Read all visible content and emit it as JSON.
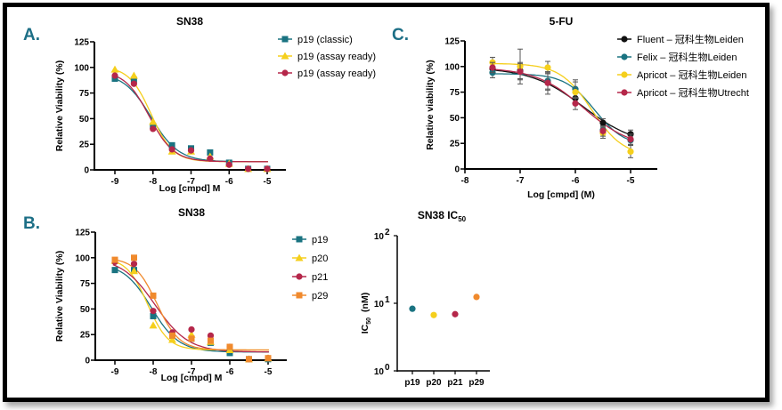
{
  "panels": {
    "A": "A.",
    "B": "B.",
    "C": "C."
  },
  "colors": {
    "teal": "#1a7381",
    "yellow": "#f5cf1c",
    "red": "#b5274a",
    "orange": "#f08a2d",
    "black": "#111111",
    "letter": "#1d6f86"
  },
  "chart_data": [
    {
      "id": "A",
      "type": "scatter",
      "title": "SN38",
      "xlabel": "Log [cmpd] M",
      "ylabel": "Relative Viability (%)",
      "xlim": [
        -9.5,
        -4.7
      ],
      "ylim": [
        0,
        125
      ],
      "xticks": [
        -9,
        -8,
        -7,
        -6,
        -5
      ],
      "yticks": [
        0,
        25,
        50,
        75,
        100,
        125
      ],
      "legend_position": "top-right",
      "x": [
        -9,
        -8.5,
        -8,
        -7.5,
        -7,
        -6.5,
        -6,
        -5.5,
        -5
      ],
      "series": [
        {
          "name": "p19 (classic)",
          "color": "#1a7381",
          "marker": "square",
          "values": [
            89,
            88,
            43,
            24,
            21,
            17,
            7,
            1,
            1
          ],
          "fit": {
            "top": 95,
            "bottom": 8,
            "logec50": -8.05,
            "hill": 1.2
          }
        },
        {
          "name": "p19 (assay ready)",
          "color": "#f5cf1c",
          "marker": "triangle",
          "values": [
            98,
            92,
            47,
            18,
            18,
            13,
            6,
            1,
            1
          ],
          "fit": {
            "top": 101,
            "bottom": 8,
            "logec50": -8.05,
            "hill": 1.5
          }
        },
        {
          "name": "p19 (assay ready)",
          "color": "#b5274a",
          "marker": "circle",
          "values": [
            92,
            84,
            40,
            20,
            19,
            11,
            5,
            1,
            1
          ],
          "fit": {
            "top": 97,
            "bottom": 8,
            "logec50": -8.1,
            "hill": 1.35
          }
        }
      ]
    },
    {
      "id": "C",
      "type": "scatter",
      "title": "5-FU",
      "xlabel": "Log [cmpd] (M)",
      "ylabel": "Relative viability (%)",
      "xlim": [
        -8,
        -4.5
      ],
      "ylim": [
        0,
        125
      ],
      "xticks": [
        -8,
        -7,
        -6,
        -5
      ],
      "yticks": [
        0,
        25,
        50,
        75,
        100,
        125
      ],
      "legend_position": "top-right",
      "x": [
        -7.5,
        -7,
        -6.5,
        -6,
        -5.5,
        -5
      ],
      "series": [
        {
          "name": "Fluent – 冠科生物Leiden",
          "color": "#111111",
          "marker": "circle",
          "values": [
            98,
            96,
            85,
            69,
            45,
            34
          ],
          "err": [
            5,
            8,
            8,
            6,
            4,
            4
          ],
          "fit": {
            "top": 99,
            "bottom": 22,
            "logec50": -5.85,
            "hill": 0.9
          }
        },
        {
          "name": "Felix – 冠科生物Leiden",
          "color": "#1a7381",
          "marker": "circle",
          "values": [
            94,
            95,
            86,
            78,
            38,
            28
          ],
          "err": [
            5,
            7,
            8,
            9,
            4,
            4
          ],
          "fit": {
            "top": 93,
            "bottom": 22,
            "logec50": -5.65,
            "hill": 1.6
          }
        },
        {
          "name": "Apricot – 冠科生物Leiden",
          "color": "#f5cf1c",
          "marker": "circle",
          "values": [
            104,
            100,
            99,
            75,
            35,
            17
          ],
          "err": [
            5,
            17,
            6,
            10,
            5,
            6
          ],
          "fit": {
            "top": 103,
            "bottom": 12,
            "logec50": -5.7,
            "hill": 1.5
          }
        },
        {
          "name": "Apricot – 冠科生物Utrecht",
          "color": "#b5274a",
          "marker": "circle",
          "values": [
            99,
            95,
            84,
            64,
            37,
            29
          ],
          "err": [
            5,
            8,
            11,
            6,
            5,
            5
          ],
          "fit": {
            "top": 99,
            "bottom": 20,
            "logec50": -5.85,
            "hill": 1.0
          }
        }
      ]
    },
    {
      "id": "B",
      "type": "scatter",
      "title": "SN38",
      "xlabel": "Log [cmpd] M",
      "ylabel": "Relative Viability (%)",
      "xlim": [
        -9.5,
        -4.7
      ],
      "ylim": [
        0,
        125
      ],
      "xticks": [
        -9,
        -8,
        -7,
        -6,
        -5
      ],
      "yticks": [
        0,
        25,
        50,
        75,
        100,
        125
      ],
      "legend_position": "top-right",
      "x": [
        -9,
        -8.5,
        -8,
        -7.5,
        -7,
        -6.5,
        -6,
        -5.5,
        -5
      ],
      "series": [
        {
          "name": "p19",
          "color": "#1a7381",
          "marker": "square",
          "values": [
            88,
            88,
            43,
            24,
            21,
            17,
            7,
            1,
            1
          ],
          "fit": {
            "top": 95,
            "bottom": 8,
            "logec50": -8.05,
            "hill": 1.2
          }
        },
        {
          "name": "p20",
          "color": "#f5cf1c",
          "marker": "triangle",
          "values": [
            97,
            87,
            34,
            20,
            25,
            18,
            10,
            1,
            2
          ],
          "fit": {
            "top": 100,
            "bottom": 10,
            "logec50": -8.15,
            "hill": 1.6
          }
        },
        {
          "name": "p21",
          "color": "#b5274a",
          "marker": "circle",
          "values": [
            96,
            94,
            48,
            27,
            30,
            24,
            13,
            1,
            2
          ],
          "fit": {
            "top": 100,
            "bottom": 8,
            "logec50": -7.95,
            "hill": 1.0
          }
        },
        {
          "name": "p29",
          "color": "#f08a2d",
          "marker": "square",
          "values": [
            98,
            100,
            63,
            24,
            21,
            19,
            13,
            1,
            2
          ],
          "fit": {
            "top": 100,
            "bottom": 10,
            "logec50": -7.9,
            "hill": 1.5
          }
        }
      ]
    },
    {
      "id": "IC50",
      "type": "scatter",
      "title": "SN38 IC",
      "title_sub": "50",
      "ylabel": "IC",
      "ylabel_sub": "50",
      "ylabel_unit": "(nM)",
      "yscale": "log",
      "ylim": [
        1,
        100
      ],
      "yticks": [
        {
          "base": "10",
          "exp": "0"
        },
        {
          "base": "10",
          "exp": "1"
        },
        {
          "base": "10",
          "exp": "2"
        }
      ],
      "categories": [
        "p19",
        "p20",
        "p21",
        "p29"
      ],
      "values": [
        8.3,
        6.7,
        6.9,
        12.4
      ],
      "point_colors": [
        "#1a7381",
        "#f5cf1c",
        "#b5274a",
        "#f08a2d"
      ]
    }
  ]
}
